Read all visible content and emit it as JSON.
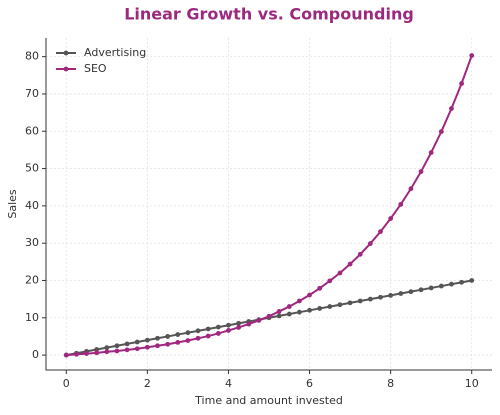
{
  "chart_data": {
    "type": "line",
    "title": "Linear Growth vs. Compounding",
    "x_label": "Time and amount invested",
    "y_label": "Sales",
    "x": [
      0,
      0.25,
      0.5,
      0.75,
      1,
      1.25,
      1.5,
      1.75,
      2,
      2.25,
      2.5,
      2.75,
      3,
      3.25,
      3.5,
      3.75,
      4,
      4.25,
      4.5,
      4.75,
      5,
      5.25,
      5.5,
      5.75,
      6,
      6.25,
      6.5,
      6.75,
      7,
      7.25,
      7.5,
      7.75,
      8,
      8.25,
      8.5,
      8.75,
      9,
      9.25,
      9.5,
      9.75,
      10
    ],
    "series": [
      {
        "name": "Advertising",
        "color": "#555555",
        "values": [
          0,
          0.5,
          1,
          1.5,
          2,
          2.5,
          3,
          3.5,
          4,
          4.5,
          5,
          5.5,
          6,
          6.5,
          7,
          7.5,
          8,
          8.5,
          9,
          9.5,
          10,
          10.5,
          11,
          11.5,
          12,
          12.5,
          13,
          13.5,
          14,
          14.5,
          15,
          15.5,
          16,
          16.5,
          17,
          17.5,
          18,
          18.5,
          19,
          19.5,
          20
        ]
      },
      {
        "name": "SEO",
        "color": "#a0287f",
        "values": [
          0,
          0.2,
          0.4,
          0.6,
          0.9,
          1.1,
          1.4,
          1.7,
          2.1,
          2.5,
          2.9,
          3.4,
          3.9,
          4.5,
          5.1,
          5.8,
          6.6,
          7.4,
          8.3,
          9.3,
          10.4,
          11.7,
          13.0,
          14.5,
          16.1,
          17.9,
          19.9,
          22.0,
          24.4,
          27.0,
          29.9,
          33.1,
          36.6,
          40.4,
          44.6,
          49.2,
          54.3,
          59.9,
          66.1,
          72.8,
          80.3
        ]
      }
    ],
    "xlim": [
      -0.5,
      10.5
    ],
    "ylim": [
      -4,
      85
    ],
    "xticks": [
      0,
      2,
      4,
      6,
      8,
      10
    ],
    "yticks": [
      0,
      10,
      20,
      30,
      40,
      50,
      60,
      70,
      80
    ],
    "grid": true,
    "legend": "upper left",
    "title_color": "#9b2a7f"
  }
}
